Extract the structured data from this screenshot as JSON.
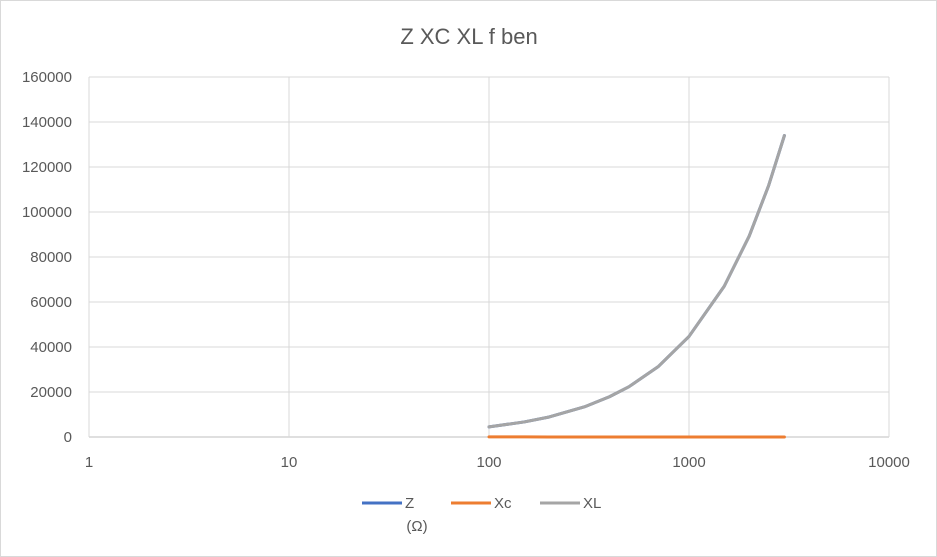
{
  "chart_data": {
    "type": "line",
    "title": "Z XC XL f ben",
    "xscale": "log",
    "xlim": [
      1,
      10000
    ],
    "ylim": [
      0,
      160000
    ],
    "grid": true,
    "legend_position": "bottom",
    "x_tick_labels": [
      "1",
      "10",
      "100",
      "1000",
      "10000"
    ],
    "x_ticks": [
      1,
      10,
      100,
      1000,
      10000
    ],
    "y_tick_labels": [
      "0",
      "20000",
      "40000",
      "60000",
      "80000",
      "100000",
      "120000",
      "140000",
      "160000"
    ],
    "y_ticks": [
      0,
      20000,
      40000,
      60000,
      80000,
      100000,
      120000,
      140000,
      160000
    ],
    "x": [
      100,
      150,
      200,
      300,
      400,
      500,
      700,
      1000,
      1500,
      2000,
      2500,
      3000
    ],
    "series": [
      {
        "name": "Z\n(Ω)",
        "color": "#4472c4",
        "values": [
          4500,
          6700,
          8900,
          13400,
          17900,
          22300,
          31200,
          44700,
          67000,
          89300,
          111700,
          134000
        ]
      },
      {
        "name": "Xc",
        "color": "#ed7d31",
        "values": [
          50,
          35,
          25,
          17,
          12,
          10,
          7,
          5,
          3,
          2,
          2,
          2
        ]
      },
      {
        "name": "XL",
        "color": "#a5a5a5",
        "values": [
          4500,
          6700,
          8900,
          13400,
          17900,
          22300,
          31200,
          44700,
          67000,
          89300,
          111700,
          134000
        ]
      }
    ]
  }
}
